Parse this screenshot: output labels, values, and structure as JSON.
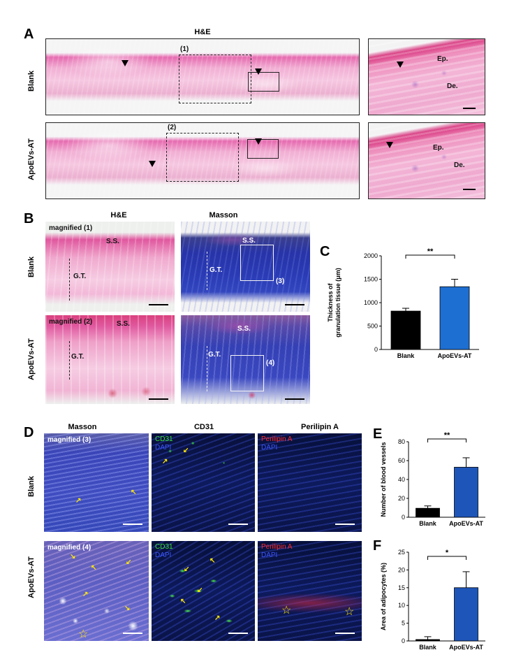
{
  "panelA": {
    "letter": "A",
    "column_header": "H&E",
    "row_labels": [
      "Blank",
      "ApoEVs-AT"
    ],
    "box_labels": [
      "(1)",
      "(2)"
    ],
    "zoom_labels": {
      "ep": "Ep.",
      "de": "De."
    }
  },
  "panelB": {
    "letter": "B",
    "column_headers": [
      "H&E",
      "Masson"
    ],
    "row_labels": [
      "Blank",
      "ApoEVs-AT"
    ],
    "magnified": [
      "magnified (1)",
      "magnified (2)"
    ],
    "ss": "S.S.",
    "gt": "G.T.",
    "box_labels": [
      "(3)",
      "(4)"
    ]
  },
  "panelD": {
    "letter": "D",
    "column_headers": [
      "Masson",
      "CD31",
      "Perilipin A"
    ],
    "row_labels": [
      "Blank",
      "ApoEVs-AT"
    ],
    "magnified": [
      "magnified (3)",
      "magnified (4)"
    ],
    "cd31": "CD31",
    "dapi": "DAPI",
    "perilipin": "Perilipin A"
  },
  "chart_data": [
    {
      "panel": "C",
      "type": "bar",
      "categories": [
        "Blank",
        "ApoEVs-AT"
      ],
      "values": [
        820,
        1340
      ],
      "errors": [
        60,
        160
      ],
      "ylabel": "Thickness of granulation tissue (μm)",
      "ylabel_lines": [
        "Thickness of",
        "granulation tissue (μm)"
      ],
      "ylim": [
        0,
        2000
      ],
      "yticks": [
        0,
        500,
        1000,
        1500,
        2000
      ],
      "significance": "**",
      "colors": [
        "#000000",
        "#1e6fd2"
      ]
    },
    {
      "panel": "E",
      "type": "bar",
      "categories": [
        "Blank",
        "ApoEVs-AT"
      ],
      "values": [
        9.5,
        53
      ],
      "errors": [
        2.5,
        10
      ],
      "ylabel": "Number of blood vessels",
      "ylabel_lines": [
        "Number of blood vessels"
      ],
      "ylim": [
        0,
        80
      ],
      "yticks": [
        0,
        20,
        40,
        60,
        80
      ],
      "significance": "**",
      "colors": [
        "#000000",
        "#1e55b8"
      ]
    },
    {
      "panel": "F",
      "type": "bar",
      "categories": [
        "Blank",
        "ApoEVs-AT"
      ],
      "values": [
        0.4,
        15
      ],
      "errors": [
        0.8,
        4.5
      ],
      "ylabel": "Area of adipocytes (%)",
      "ylabel_lines": [
        "Area of adipocytes (%)"
      ],
      "ylim": [
        0,
        25
      ],
      "yticks": [
        0,
        5,
        10,
        15,
        20,
        25
      ],
      "significance": "*",
      "colors": [
        "#000000",
        "#1e55b8"
      ]
    }
  ]
}
